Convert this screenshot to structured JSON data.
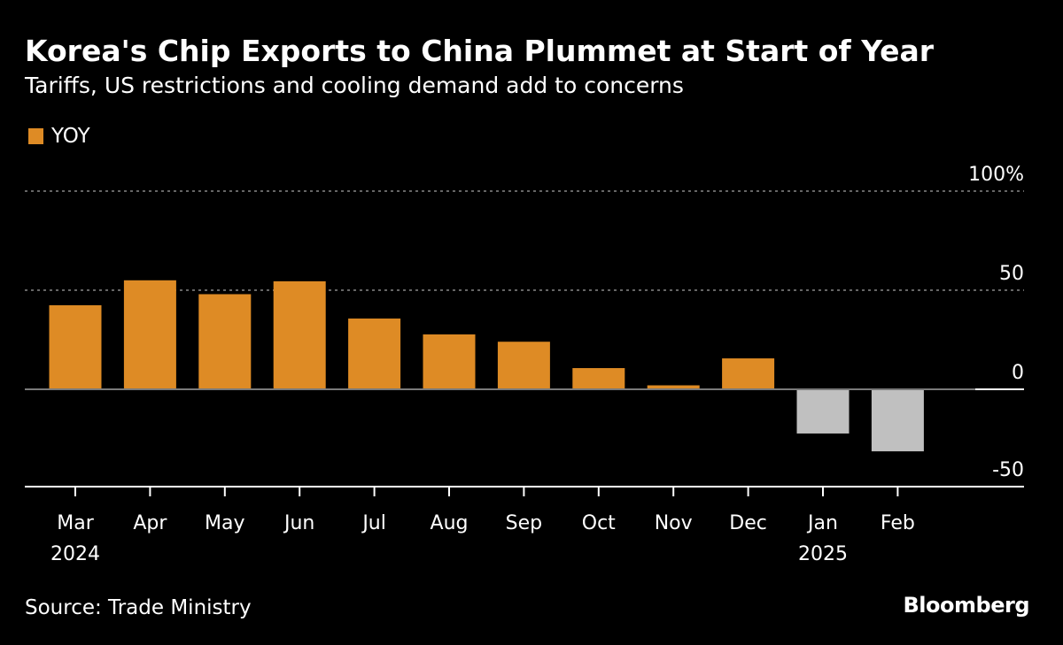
{
  "header": {
    "title": "Korea's Chip Exports to China Plummet at Start of Year",
    "subtitle": "Tariffs, US restrictions and cooling demand add to concerns"
  },
  "footer": {
    "source": "Source: Trade Ministry",
    "brand": "Bloomberg"
  },
  "colors": {
    "background": "#000000",
    "positive": "#DE8B25",
    "negative": "#C0C0C0",
    "gridline": "#888888",
    "axis": "#FFFFFF"
  },
  "chart_data": {
    "type": "bar",
    "title": "Korea's Chip Exports to China Plummet at Start of Year",
    "subtitle": "Tariffs, US restrictions and cooling demand add to concerns",
    "categories": [
      "Mar",
      "Apr",
      "May",
      "Jun",
      "Jul",
      "Aug",
      "Sep",
      "Oct",
      "Nov",
      "Dec",
      "Jan",
      "Feb"
    ],
    "category_sublabels": [
      "2024",
      "",
      "",
      "",
      "",
      "",
      "",
      "",
      "",
      "",
      "2025",
      ""
    ],
    "series": [
      {
        "name": "YOY",
        "values": [
          42.4,
          55.0,
          48.0,
          54.5,
          35.7,
          27.7,
          24.0,
          10.7,
          2.0,
          15.6,
          -22.3,
          -31.3
        ]
      }
    ],
    "legend": {
      "entries": [
        "YOY"
      ],
      "placement": "top-left"
    },
    "xlabel": "",
    "ylabel": "",
    "ylim": [
      -50,
      100
    ],
    "yticks": [
      100,
      50,
      0,
      -50
    ],
    "ytick_labels": [
      "100%",
      "50",
      "0",
      "-50"
    ],
    "y_axis_side": "right",
    "grid": "horizontal dotted",
    "source": "Source: Trade Ministry"
  }
}
